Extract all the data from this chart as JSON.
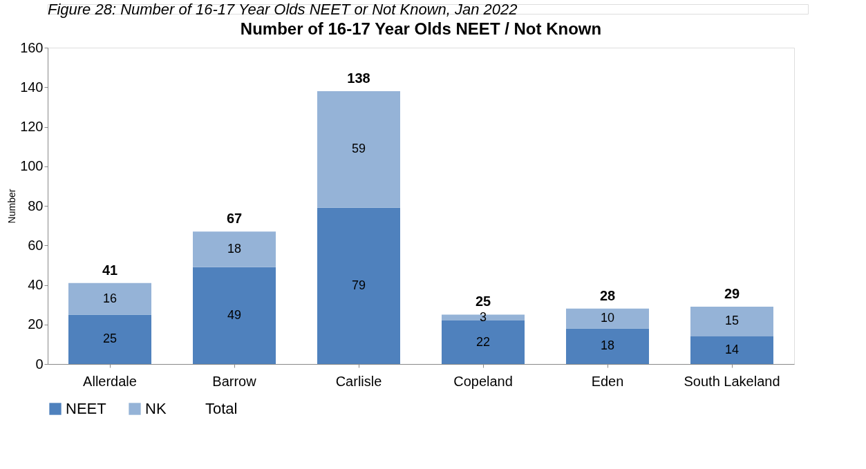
{
  "chart_data": {
    "type": "bar",
    "title": "Number of 16-17 Year Olds NEET / Not Known",
    "ylabel": "Number",
    "categories": [
      "Allerdale",
      "Barrow",
      "Carlisle",
      "Copeland",
      "Eden",
      "South Lakeland"
    ],
    "stacked": true,
    "series": [
      {
        "name": "NEET",
        "color": "#4f81bd",
        "values": [
          25,
          49,
          79,
          22,
          18,
          14
        ]
      },
      {
        "name": "NK",
        "color": "#95b3d7",
        "values": [
          16,
          18,
          59,
          3,
          10,
          15
        ]
      }
    ],
    "totals": [
      "41",
      "67",
      "138",
      "25",
      "28",
      "29"
    ],
    "data_labels": true,
    "ylim": [
      0,
      160
    ],
    "yticks": [
      0,
      20,
      40,
      60,
      80,
      100,
      120,
      140,
      160
    ],
    "grid": false,
    "legend": "bottom",
    "annotations": [
      "Figure 28: Number of 16-17 Year Olds NEET or Not Known, Jan 2022",
      "Total"
    ]
  }
}
